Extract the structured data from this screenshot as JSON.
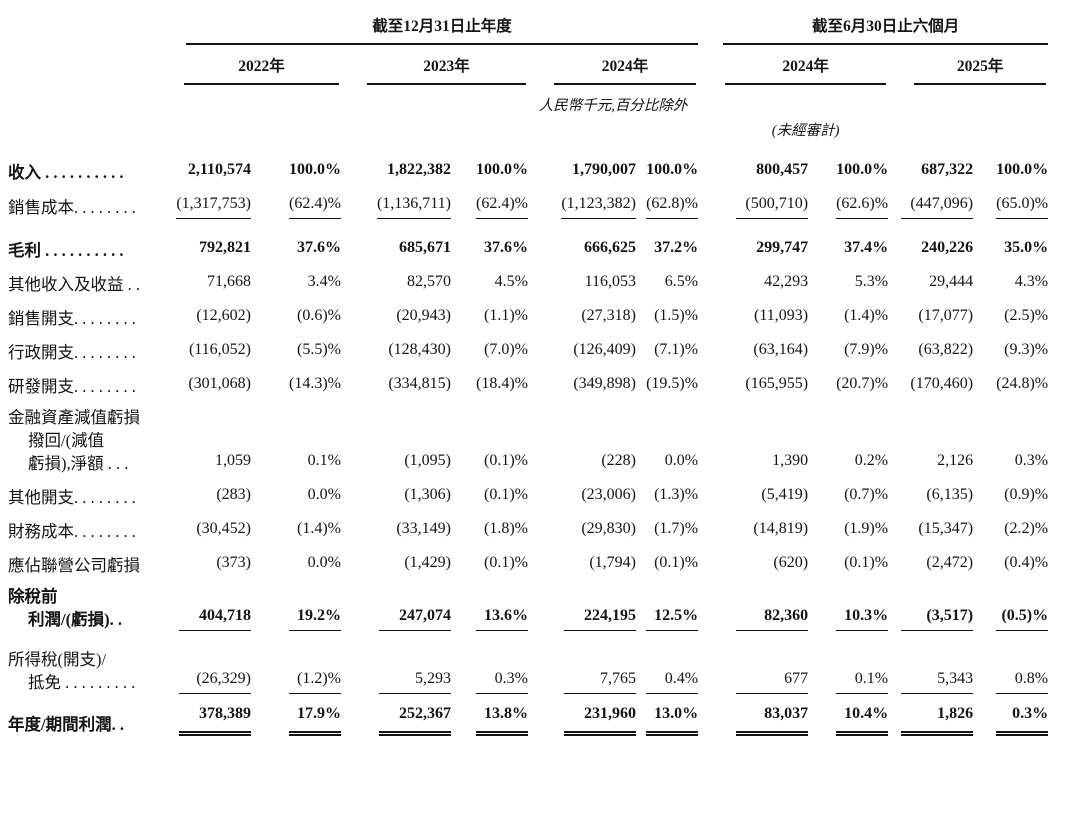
{
  "table": {
    "header": {
      "annual_group_title": "截至12月31日止年度",
      "interim_group_title": "截至6月30日止六個月",
      "annual_years": [
        "2022年",
        "2023年",
        "2024年"
      ],
      "interim_years": [
        "2024年",
        "2025年"
      ],
      "unit_note": "人民幣千元,百分比除外",
      "unaudited_note": "(未經審計)"
    },
    "rows": [
      {
        "id": "revenue",
        "label_lines": [
          "收入 . . . . . . . . . ."
        ],
        "bold": true,
        "rule": "none",
        "space_before": false,
        "values": [
          "2,110,574",
          "100.0%",
          "1,822,382",
          "100.0%",
          "1,790,007",
          "100.0%",
          "800,457",
          "100.0%",
          "687,322",
          "100.0%"
        ]
      },
      {
        "id": "cost-of-sales",
        "label_lines": [
          "銷售成本. . . . . . . ."
        ],
        "bold": false,
        "rule": "single",
        "space_before": false,
        "values": [
          "(1,317,753)",
          "(62.4)%",
          "(1,136,711)",
          "(62.4)%",
          "(1,123,382)",
          "(62.8)%",
          "(500,710)",
          "(62.6)%",
          "(447,096)",
          "(65.0)%"
        ]
      },
      {
        "id": "gross-profit",
        "label_lines": [
          "毛利 . . . . . . . . . ."
        ],
        "bold": true,
        "rule": "none",
        "space_before": true,
        "values": [
          "792,821",
          "37.6%",
          "685,671",
          "37.6%",
          "666,625",
          "37.2%",
          "299,747",
          "37.4%",
          "240,226",
          "35.0%"
        ]
      },
      {
        "id": "other-income-and-gains",
        "label_lines": [
          "其他收入及收益 . ."
        ],
        "bold": false,
        "rule": "none",
        "space_before": false,
        "values": [
          "71,668",
          "3.4%",
          "82,570",
          "4.5%",
          "116,053",
          "6.5%",
          "42,293",
          "5.3%",
          "29,444",
          "4.3%"
        ]
      },
      {
        "id": "selling-expenses",
        "label_lines": [
          "銷售開支. . . . . . . ."
        ],
        "bold": false,
        "rule": "none",
        "space_before": false,
        "values": [
          "(12,602)",
          "(0.6)%",
          "(20,943)",
          "(1.1)%",
          "(27,318)",
          "(1.5)%",
          "(11,093)",
          "(1.4)%",
          "(17,077)",
          "(2.5)%"
        ]
      },
      {
        "id": "administrative-expenses",
        "label_lines": [
          "行政開支. . . . . . . ."
        ],
        "bold": false,
        "rule": "none",
        "space_before": false,
        "values": [
          "(116,052)",
          "(5.5)%",
          "(128,430)",
          "(7.0)%",
          "(126,409)",
          "(7.1)%",
          "(63,164)",
          "(7.9)%",
          "(63,822)",
          "(9.3)%"
        ]
      },
      {
        "id": "rd-expenses",
        "label_lines": [
          "研發開支. . . . . . . ."
        ],
        "bold": false,
        "rule": "none",
        "space_before": false,
        "values": [
          "(301,068)",
          "(14.3)%",
          "(334,815)",
          "(18.4)%",
          "(349,898)",
          "(19.5)%",
          "(165,955)",
          "(20.7)%",
          "(170,460)",
          "(24.8)%"
        ]
      },
      {
        "id": "impairment-losses-net",
        "label_lines": [
          "金融資產減值虧損",
          "撥回/(減值",
          "虧損),淨額 . . ."
        ],
        "bold": false,
        "rule": "none",
        "space_before": false,
        "values": [
          "1,059",
          "0.1%",
          "(1,095)",
          "(0.1)%",
          "(228)",
          "0.0%",
          "1,390",
          "0.2%",
          "2,126",
          "0.3%"
        ]
      },
      {
        "id": "other-expenses",
        "label_lines": [
          "其他開支. . . . . . . ."
        ],
        "bold": false,
        "rule": "none",
        "space_before": false,
        "values": [
          "(283)",
          "0.0%",
          "(1,306)",
          "(0.1)%",
          "(23,006)",
          "(1.3)%",
          "(5,419)",
          "(0.7)%",
          "(6,135)",
          "(0.9)%"
        ]
      },
      {
        "id": "finance-costs",
        "label_lines": [
          "財務成本. . . . . . . ."
        ],
        "bold": false,
        "rule": "none",
        "space_before": false,
        "values": [
          "(30,452)",
          "(1.4)%",
          "(33,149)",
          "(1.8)%",
          "(29,830)",
          "(1.7)%",
          "(14,819)",
          "(1.9)%",
          "(15,347)",
          "(2.2)%"
        ]
      },
      {
        "id": "share-of-losses-of-associates",
        "label_lines": [
          "應佔聯營公司虧損"
        ],
        "bold": false,
        "rule": "none",
        "space_before": false,
        "values": [
          "(373)",
          "0.0%",
          "(1,429)",
          "(0.1)%",
          "(1,794)",
          "(0.1)%",
          "(620)",
          "(0.1)%",
          "(2,472)",
          "(0.4)%"
        ]
      },
      {
        "id": "profit-loss-before-tax",
        "label_lines": [
          "除稅前",
          "利潤/(虧損). ."
        ],
        "bold": true,
        "rule": "single",
        "space_before": false,
        "values": [
          "404,718",
          "19.2%",
          "247,074",
          "13.6%",
          "224,195",
          "12.5%",
          "82,360",
          "10.3%",
          "(3,517)",
          "(0.5)%"
        ]
      },
      {
        "id": "income-tax-expense-credit",
        "label_lines": [
          "所得稅(開支)/",
          "抵免 . . . . . . . . ."
        ],
        "bold": false,
        "rule": "single",
        "space_before": true,
        "values": [
          "(26,329)",
          "(1.2)%",
          "5,293",
          "0.3%",
          "7,765",
          "0.4%",
          "677",
          "0.1%",
          "5,343",
          "0.8%"
        ]
      },
      {
        "id": "profit-for-the-year-period",
        "label_lines": [
          "年度/期間利潤. ."
        ],
        "bold": true,
        "rule": "double",
        "space_before": false,
        "values": [
          "378,389",
          "17.9%",
          "252,367",
          "13.8%",
          "231,960",
          "13.0%",
          "83,037",
          "10.4%",
          "1,826",
          "0.3%"
        ]
      }
    ]
  },
  "colors": {
    "background": "#ffffff",
    "text": "#141414",
    "rule": "#141414"
  }
}
